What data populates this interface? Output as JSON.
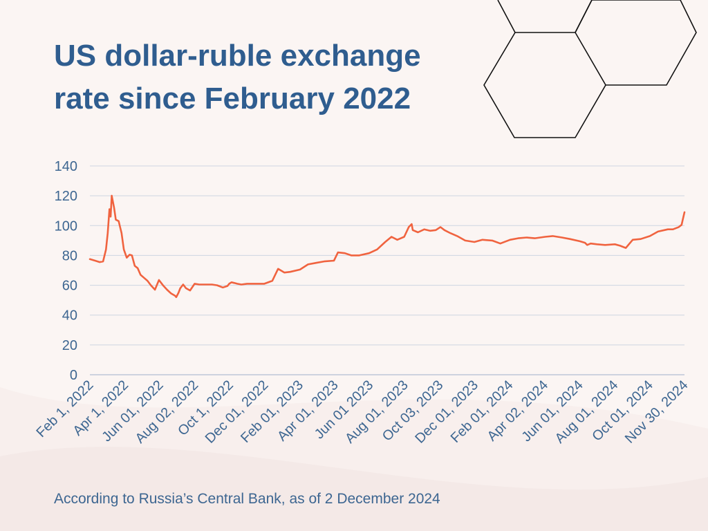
{
  "title": "US dollar-ruble exchange rate since February 2022",
  "footnote": "According to Russia’s Central Bank, as of 2 December 2024",
  "colors": {
    "title": "#2f5d8f",
    "line": "#f0633f",
    "axis_text": "#3d6691",
    "grid": "#cdd5e2",
    "background": "#fbf5f3"
  },
  "chart_data": {
    "type": "line",
    "title": "US dollar-ruble exchange rate since February 2022",
    "xlabel": "",
    "ylabel": "",
    "ylim": [
      0,
      140
    ],
    "yticks": [
      0,
      20,
      40,
      60,
      80,
      100,
      120,
      140
    ],
    "grid": true,
    "x_tick_labels": [
      "Feb 1, 2022",
      "Apr 1, 2022",
      "Jun 01, 2022",
      "Aug 02, 2022",
      "Oct 1, 2022",
      "Dec 01, 2022",
      "Feb 01, 2023",
      "Apr 01, 2023",
      "Jun 01 2023",
      "Aug 01, 2023",
      "Oct 03, 2023",
      "Dec 01, 2023",
      "Feb 01, 2024",
      "Apr 02, 2024",
      "Jun 01, 2024",
      "Aug 01, 2024",
      "Oct 01, 2024",
      "Nov 30, 2024"
    ],
    "series": [
      {
        "name": "",
        "x": [
          "2022-02-01",
          "2022-02-10",
          "2022-02-18",
          "2022-02-24",
          "2022-03-01",
          "2022-03-04",
          "2022-03-07",
          "2022-03-09",
          "2022-03-11",
          "2022-03-15",
          "2022-03-18",
          "2022-03-23",
          "2022-03-28",
          "2022-04-01",
          "2022-04-06",
          "2022-04-11",
          "2022-04-15",
          "2022-04-20",
          "2022-04-25",
          "2022-04-30",
          "2022-05-06",
          "2022-05-12",
          "2022-05-18",
          "2022-05-25",
          "2022-06-01",
          "2022-06-08",
          "2022-06-15",
          "2022-06-22",
          "2022-06-29",
          "2022-07-01",
          "2022-07-05",
          "2022-07-08",
          "2022-07-13",
          "2022-07-18",
          "2022-07-25",
          "2022-08-02",
          "2022-08-10",
          "2022-08-20",
          "2022-09-01",
          "2022-09-10",
          "2022-09-20",
          "2022-09-28",
          "2022-10-01",
          "2022-10-05",
          "2022-10-10",
          "2022-10-15",
          "2022-10-22",
          "2022-11-01",
          "2022-11-15",
          "2022-12-01",
          "2022-12-15",
          "2022-12-25",
          "2023-01-05",
          "2023-01-15",
          "2023-02-01",
          "2023-02-15",
          "2023-03-01",
          "2023-03-15",
          "2023-04-01",
          "2023-04-08",
          "2023-04-20",
          "2023-05-01",
          "2023-05-15",
          "2023-06-01",
          "2023-06-15",
          "2023-06-29",
          "2023-07-10",
          "2023-07-20",
          "2023-08-01",
          "2023-08-09",
          "2023-08-14",
          "2023-08-16",
          "2023-08-25",
          "2023-09-05",
          "2023-09-15",
          "2023-09-25",
          "2023-10-03",
          "2023-10-10",
          "2023-10-20",
          "2023-11-01",
          "2023-11-15",
          "2023-12-01",
          "2023-12-15",
          "2024-01-01",
          "2024-01-15",
          "2024-02-01",
          "2024-02-15",
          "2024-03-01",
          "2024-03-15",
          "2024-04-02",
          "2024-04-15",
          "2024-05-01",
          "2024-05-15",
          "2024-06-01",
          "2024-06-10",
          "2024-06-14",
          "2024-06-20",
          "2024-07-01",
          "2024-07-15",
          "2024-08-01",
          "2024-08-10",
          "2024-08-20",
          "2024-09-01",
          "2024-09-15",
          "2024-10-01",
          "2024-10-15",
          "2024-11-01",
          "2024-11-10",
          "2024-11-20",
          "2024-11-25",
          "2024-11-27",
          "2024-11-30"
        ],
        "values": [
          77.5,
          76.5,
          75.5,
          76.0,
          84.0,
          95.0,
          111.0,
          106.0,
          120.0,
          112.0,
          104.0,
          103.0,
          95.0,
          84.0,
          78.5,
          80.5,
          80.0,
          73.0,
          71.5,
          67.0,
          65.0,
          63.0,
          60.0,
          57.0,
          63.5,
          60.0,
          57.0,
          54.5,
          53.0,
          52.0,
          55.0,
          58.0,
          60.5,
          58.0,
          56.5,
          61.0,
          60.5,
          60.5,
          60.5,
          60.0,
          58.5,
          59.5,
          61.0,
          62.0,
          61.5,
          61.0,
          60.5,
          61.0,
          61.0,
          61.0,
          63.0,
          71.0,
          68.5,
          69.0,
          70.5,
          74.0,
          75.0,
          76.0,
          76.5,
          82.0,
          81.5,
          80.0,
          80.0,
          81.5,
          84.0,
          89.0,
          92.5,
          90.5,
          92.5,
          99.0,
          101.0,
          97.0,
          95.5,
          97.5,
          96.5,
          97.0,
          99.0,
          97.0,
          95.0,
          93.0,
          90.0,
          89.0,
          90.5,
          90.0,
          88.0,
          90.5,
          91.5,
          92.0,
          91.5,
          92.5,
          93.0,
          92.0,
          91.0,
          89.5,
          88.5,
          87.0,
          88.0,
          87.5,
          87.0,
          87.5,
          86.5,
          85.0,
          90.5,
          91.0,
          93.0,
          96.0,
          97.5,
          97.5,
          99.0,
          100.5,
          104.0,
          109.0
        ]
      }
    ]
  }
}
